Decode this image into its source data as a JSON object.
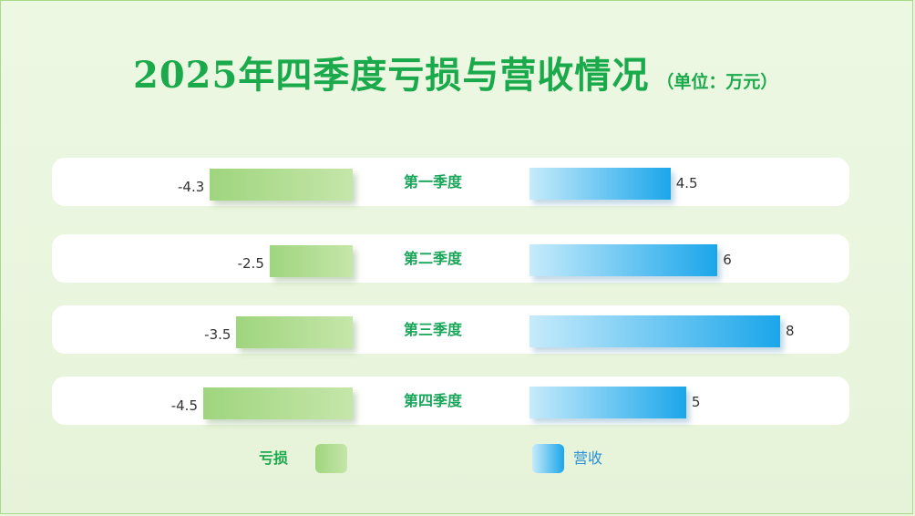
{
  "chart_data": {
    "type": "bar",
    "title": "2025年四季度亏损与营收情况",
    "subtitle": "（单位：万元）",
    "categories": [
      "第一季度",
      "第二季度",
      "第三季度",
      "第四季度"
    ],
    "series": [
      {
        "name": "亏损",
        "values": [
          -4.3,
          -2.5,
          -3.5,
          -4.5
        ],
        "value_labels": [
          "-4.3",
          "-2.5",
          "-3.5",
          "-4.5"
        ]
      },
      {
        "name": "营收",
        "values": [
          4.5,
          6,
          8,
          5
        ],
        "value_labels": [
          "4.5",
          "6",
          "8",
          "5"
        ]
      }
    ],
    "legend_position": "bottom",
    "grid": false,
    "xlim_loss": [
      -6,
      0
    ],
    "xlim_revenue": [
      0,
      10
    ]
  },
  "colors": {
    "title": "#1aaa4c",
    "category_label": "#1aa55a",
    "loss_start": "#9fd57e",
    "loss_end": "#c5e6a9",
    "revenue_start": "#c6ebfb",
    "revenue_end": "#1ba6ea",
    "background": "#e9f5dc"
  }
}
